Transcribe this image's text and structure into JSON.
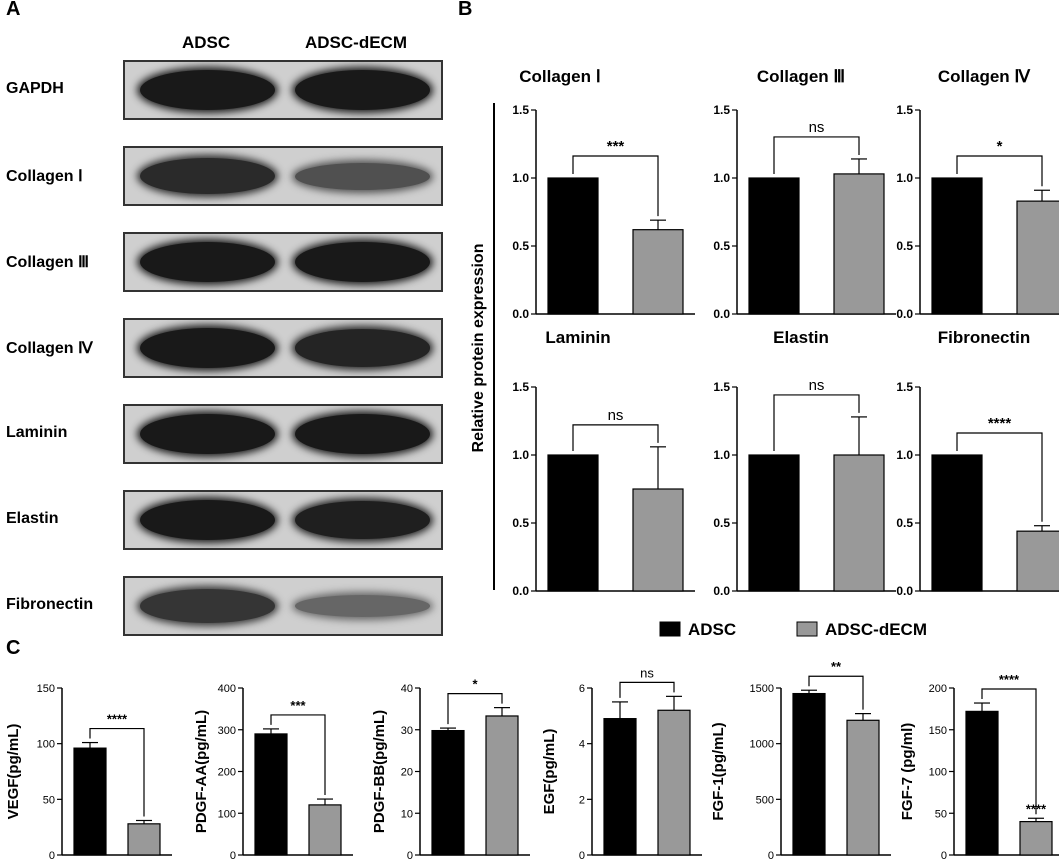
{
  "panels": {
    "a": "A",
    "b": "B",
    "c": "C"
  },
  "blot": {
    "columns": [
      "ADSC",
      "ADSC-dECM"
    ],
    "rows": [
      {
        "label": "GAPDH",
        "intensity": [
          1.0,
          1.0
        ]
      },
      {
        "label": "Collagen Ⅰ",
        "intensity": [
          0.85,
          0.5
        ]
      },
      {
        "label": "Collagen Ⅲ",
        "intensity": [
          1.0,
          1.0
        ]
      },
      {
        "label": "Collagen Ⅳ",
        "intensity": [
          1.0,
          0.9
        ]
      },
      {
        "label": "Laminin",
        "intensity": [
          1.0,
          1.0
        ]
      },
      {
        "label": "Elastin",
        "intensity": [
          1.0,
          0.95
        ]
      },
      {
        "label": "Fibronectin",
        "intensity": [
          0.75,
          0.3
        ]
      }
    ]
  },
  "b_ylabel": "Relative protein expression",
  "legend": {
    "items": [
      {
        "label": "ADSC",
        "color": "#000000"
      },
      {
        "label": "ADSC-dECM",
        "color": "#999999"
      }
    ]
  },
  "chart_data": [
    {
      "type": "bar",
      "title": "Collagen Ⅰ",
      "categories": [
        "ADSC",
        "ADSC-dECM"
      ],
      "values": [
        1.0,
        0.62
      ],
      "errors": [
        0,
        0.07
      ],
      "ylim": [
        0,
        1.5
      ],
      "yticks": [
        "0.0",
        "0.5",
        "1.0",
        "1.5"
      ],
      "sig": "***"
    },
    {
      "type": "bar",
      "title": "Collagen Ⅲ",
      "categories": [
        "ADSC",
        "ADSC-dECM"
      ],
      "values": [
        1.0,
        1.03
      ],
      "errors": [
        0,
        0.11
      ],
      "ylim": [
        0,
        1.5
      ],
      "yticks": [
        "0.0",
        "0.5",
        "1.0",
        "1.5"
      ],
      "sig": "ns"
    },
    {
      "type": "bar",
      "title": "Collagen Ⅳ",
      "categories": [
        "ADSC",
        "ADSC-dECM"
      ],
      "values": [
        1.0,
        0.83
      ],
      "errors": [
        0,
        0.08
      ],
      "ylim": [
        0,
        1.5
      ],
      "yticks": [
        "0.0",
        "0.5",
        "1.0",
        "1.5"
      ],
      "sig": "*"
    },
    {
      "type": "bar",
      "title": "Laminin",
      "categories": [
        "ADSC",
        "ADSC-dECM"
      ],
      "values": [
        1.0,
        0.75
      ],
      "errors": [
        0,
        0.31
      ],
      "ylim": [
        0,
        1.5
      ],
      "yticks": [
        "0.0",
        "0.5",
        "1.0",
        "1.5"
      ],
      "sig": "ns"
    },
    {
      "type": "bar",
      "title": "Elastin",
      "categories": [
        "ADSC",
        "ADSC-dECM"
      ],
      "values": [
        1.0,
        1.0
      ],
      "errors": [
        0,
        0.28
      ],
      "ylim": [
        0,
        1.5
      ],
      "yticks": [
        "0.0",
        "0.5",
        "1.0",
        "1.5"
      ],
      "sig": "ns"
    },
    {
      "type": "bar",
      "title": "Fibronectin",
      "categories": [
        "ADSC",
        "ADSC-dECM"
      ],
      "values": [
        1.0,
        0.44
      ],
      "errors": [
        0,
        0.04
      ],
      "ylim": [
        0,
        1.5
      ],
      "yticks": [
        "0.0",
        "0.5",
        "1.0",
        "1.5"
      ],
      "sig": "****"
    },
    {
      "type": "bar",
      "ylabel": "VEGF(pg/mL)",
      "categories": [
        "ADSC",
        "ADSC-dECM"
      ],
      "values": [
        96,
        28
      ],
      "errors": [
        5,
        3
      ],
      "ylim": [
        0,
        150
      ],
      "yticks": [
        "0",
        "50",
        "100",
        "150"
      ],
      "sig": "****"
    },
    {
      "type": "bar",
      "ylabel": "PDGF-AA(pg/mL)",
      "categories": [
        "ADSC",
        "ADSC-dECM"
      ],
      "values": [
        290,
        120
      ],
      "errors": [
        12,
        14
      ],
      "ylim": [
        0,
        400
      ],
      "yticks": [
        "0",
        "100",
        "200",
        "300",
        "400"
      ],
      "sig": "***"
    },
    {
      "type": "bar",
      "ylabel": "PDGF-BB(pg/mL)",
      "categories": [
        "ADSC",
        "ADSC-dECM"
      ],
      "values": [
        29.8,
        33.3
      ],
      "errors": [
        0.6,
        2
      ],
      "ylim": [
        0,
        40
      ],
      "yticks": [
        "0",
        "10",
        "20",
        "30",
        "40"
      ],
      "sig": "*"
    },
    {
      "type": "bar",
      "ylabel": "EGF(pg/mL)",
      "categories": [
        "ADSC",
        "ADSC-dECM"
      ],
      "values": [
        4.9,
        5.2
      ],
      "errors": [
        0.6,
        0.5
      ],
      "ylim": [
        0,
        6
      ],
      "yticks": [
        "0",
        "2",
        "4",
        "6"
      ],
      "sig": "ns"
    },
    {
      "type": "bar",
      "ylabel": "FGF-1(pg/mL)",
      "categories": [
        "ADSC",
        "ADSC-dECM"
      ],
      "values": [
        1450,
        1210
      ],
      "errors": [
        30,
        60
      ],
      "ylim": [
        0,
        1500
      ],
      "yticks": [
        "0",
        "500",
        "1000",
        "1500"
      ],
      "sig": "**"
    },
    {
      "type": "bar",
      "ylabel": "FGF-7 (pg/ml)",
      "categories": [
        "ADSC",
        "ADSC-dECM"
      ],
      "values": [
        172,
        40
      ],
      "errors": [
        10,
        4
      ],
      "ylim": [
        0,
        200
      ],
      "yticks": [
        "0",
        "50",
        "100",
        "150",
        "200"
      ],
      "sig": "****",
      "extra_sig": "****"
    }
  ]
}
